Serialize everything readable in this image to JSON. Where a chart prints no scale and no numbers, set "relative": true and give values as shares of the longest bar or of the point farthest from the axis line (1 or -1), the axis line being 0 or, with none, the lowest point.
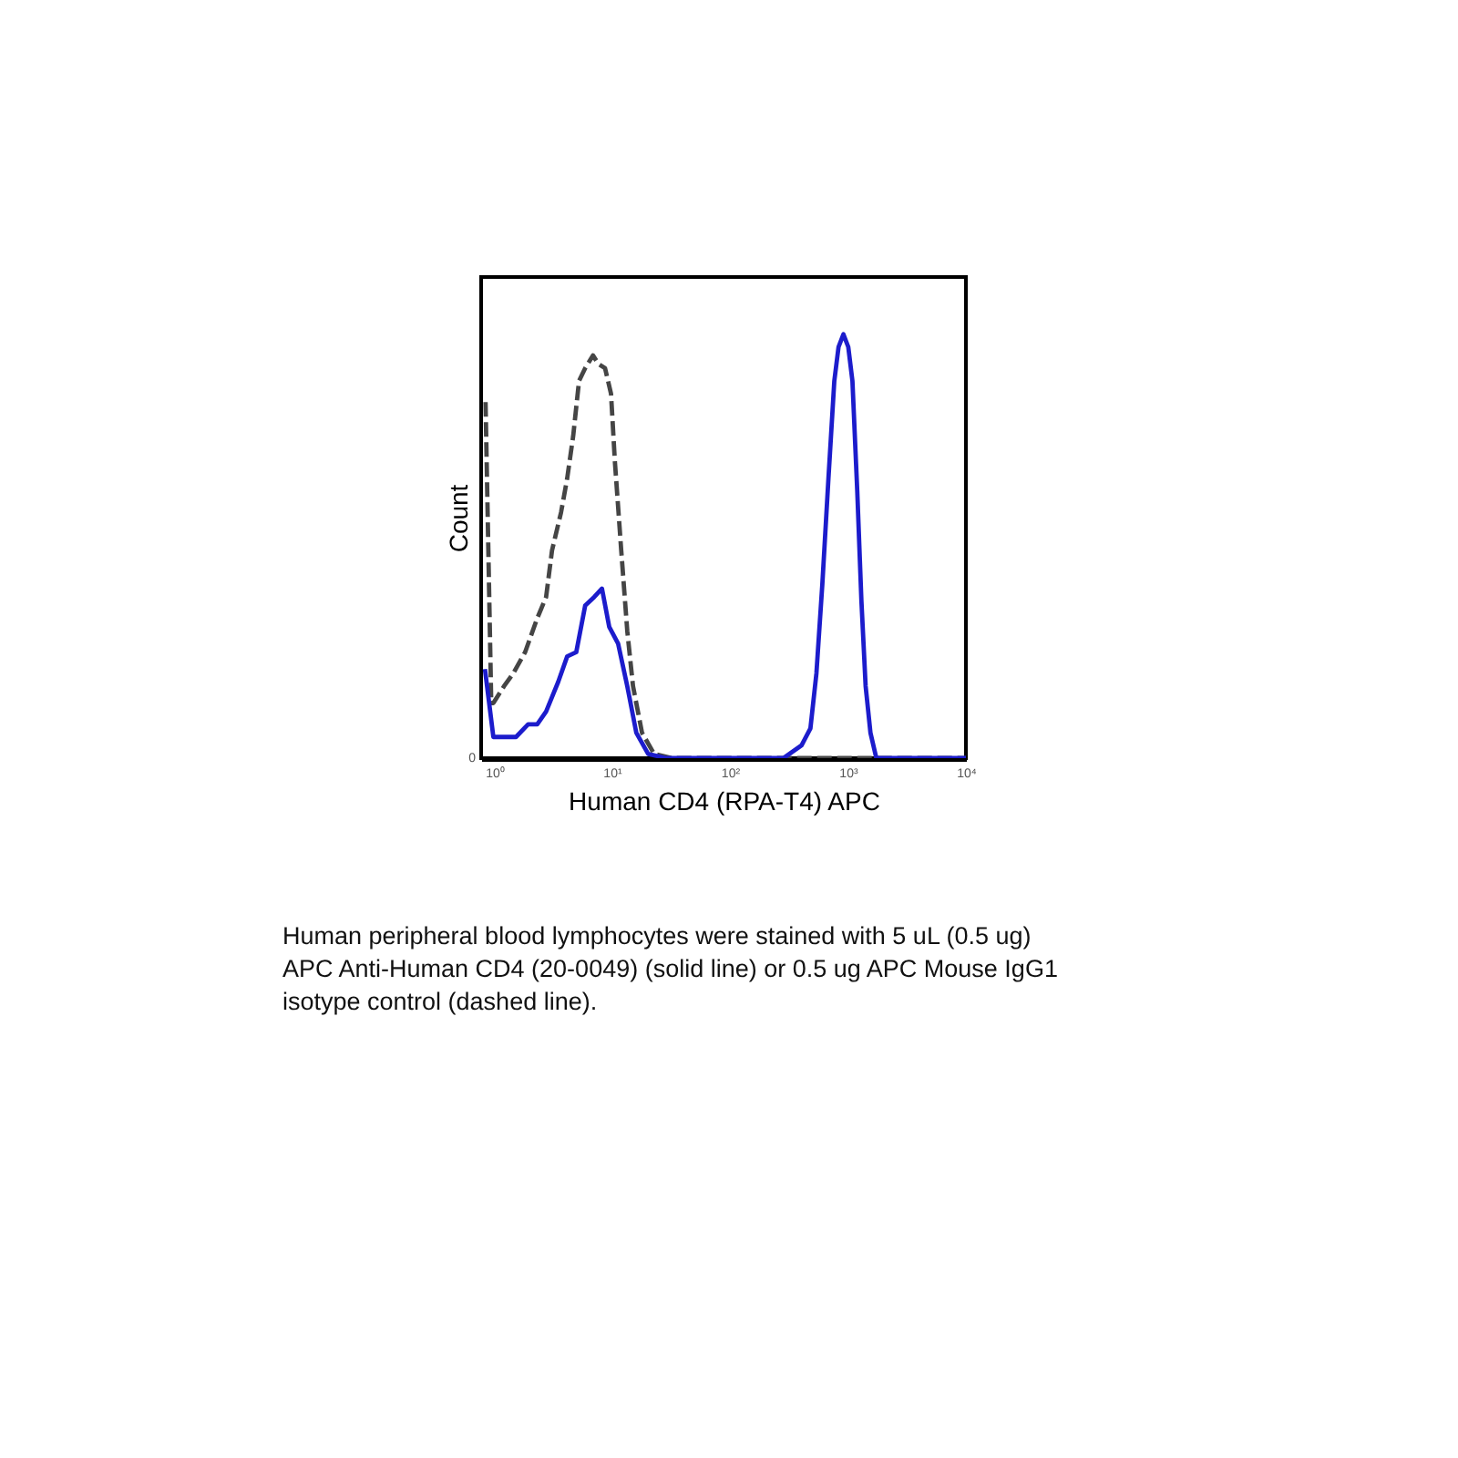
{
  "chart_data": {
    "type": "line",
    "xlabel": "Human CD4 (RPA-T4) APC",
    "ylabel": "Count",
    "relative": true,
    "log": "x",
    "xlim": [
      0.78,
      10000
    ],
    "xticks": [
      {
        "value": 1,
        "label": "10⁰"
      },
      {
        "value": 10,
        "label": "10¹"
      },
      {
        "value": 100,
        "label": "10²"
      },
      {
        "value": 1000,
        "label": "10³"
      },
      {
        "value": 10000,
        "label": "10⁴"
      }
    ],
    "series": [
      {
        "color": "#454545",
        "line_style": "dashed",
        "x": [
          0.85,
          0.95,
          0.99,
          1.22,
          1.46,
          1.84,
          2.33,
          2.77,
          3.11,
          3.71,
          4.18,
          4.7,
          5.27,
          5.94,
          6.92,
          7.68,
          8.75,
          9.83,
          10.6,
          12,
          13.5,
          15.1,
          18,
          22.8,
          32.5,
          10000
        ],
        "values": [
          0.84,
          0.13,
          0.13,
          0.17,
          0.2,
          0.25,
          0.33,
          0.38,
          0.49,
          0.58,
          0.66,
          0.76,
          0.89,
          0.92,
          0.95,
          0.93,
          0.92,
          0.86,
          0.7,
          0.49,
          0.3,
          0.17,
          0.06,
          0.01,
          0,
          0
        ]
      },
      {
        "color": "#1c1ccc",
        "line_style": "solid",
        "x": [
          0.84,
          0.99,
          1.22,
          1.54,
          1.95,
          2.33,
          2.77,
          3.51,
          4.18,
          4.99,
          5.94,
          7.08,
          8.24,
          9.49,
          11.3,
          13.5,
          16.1,
          20.3,
          28.9,
          284,
          404,
          481,
          541,
          607,
          684,
          767,
          833,
          916,
          1007,
          1092,
          1200,
          1302,
          1413,
          1552,
          1742,
          10000
        ],
        "values": [
          0.21,
          0.05,
          0.05,
          0.05,
          0.08,
          0.08,
          0.11,
          0.18,
          0.24,
          0.25,
          0.36,
          0.38,
          0.4,
          0.31,
          0.27,
          0.17,
          0.06,
          0.01,
          0,
          0,
          0.03,
          0.07,
          0.2,
          0.41,
          0.66,
          0.89,
          0.97,
          1,
          0.97,
          0.89,
          0.63,
          0.37,
          0.17,
          0.06,
          0,
          0
        ]
      }
    ],
    "annotations": [
      "0",
      "Human peripheral blood lymphocytes were stained with 5 uL (0.5 ug) APC Anti-Human CD4 (20-0049) (solid line) or 0.5 ug APC Mouse IgG1 isotype control (dashed line)."
    ]
  }
}
